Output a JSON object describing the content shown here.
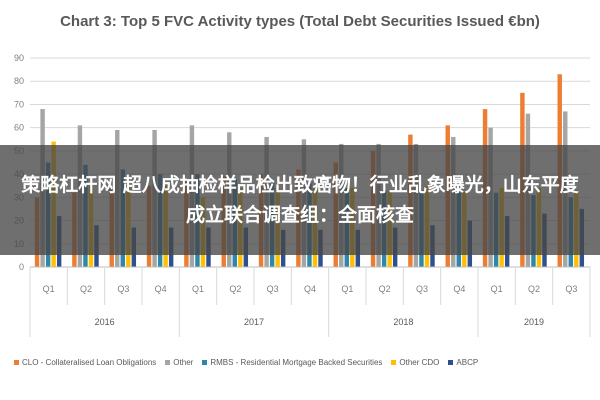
{
  "overlay": {
    "headline": "策略杠杆网 超八成抽检样品检出致癌物！行业乱象曝光，山东平度成立联合调查组：全面核查"
  },
  "chart_data": {
    "type": "bar",
    "title": "Chart 3: Top 5 FVC Activity types (Total Debt Securities Issued €bn)",
    "categories": [
      "Q1",
      "Q2",
      "Q3",
      "Q4",
      "Q1",
      "Q2",
      "Q3",
      "Q4",
      "Q1",
      "Q2",
      "Q3",
      "Q4",
      "Q1",
      "Q2",
      "Q3"
    ],
    "year_groups": [
      {
        "label": "2016",
        "count": 4
      },
      {
        "label": "2017",
        "count": 4
      },
      {
        "label": "2018",
        "count": 4
      },
      {
        "label": "2019",
        "count": 3
      }
    ],
    "ylim": [
      0,
      90
    ],
    "yticks": [
      0,
      10,
      20,
      30,
      40,
      50,
      60,
      70,
      80,
      90
    ],
    "grid": true,
    "legend_position": "bottom",
    "series": [
      {
        "name": "CLO - Collateralised Loan Obligations",
        "color": "#ed7d31",
        "values": [
          30,
          32,
          34,
          35,
          37,
          39,
          40,
          42,
          45,
          50,
          57,
          61,
          68,
          75,
          83
        ]
      },
      {
        "name": "Other",
        "color": "#a5a5a5",
        "values": [
          68,
          61,
          59,
          59,
          61,
          58,
          56,
          55,
          53,
          53,
          53,
          56,
          60,
          66,
          67
        ]
      },
      {
        "name": "RMBS - Residential Mortgage Backed Securities",
        "color": "#2e86ab",
        "values": [
          45,
          44,
          42,
          40,
          40,
          38,
          37,
          36,
          34,
          33,
          33,
          32,
          32,
          31,
          30
        ]
      },
      {
        "name": "Other CDO",
        "color": "#ffc000",
        "values": [
          54,
          35,
          35,
          35,
          30,
          34,
          34,
          34,
          34,
          33,
          35,
          33,
          34,
          34,
          33
        ]
      },
      {
        "name": "ABCP",
        "color": "#2f4f8f",
        "values": [
          22,
          18,
          17,
          17,
          17,
          17,
          16,
          16,
          16,
          17,
          18,
          20,
          22,
          23,
          25
        ]
      }
    ]
  }
}
